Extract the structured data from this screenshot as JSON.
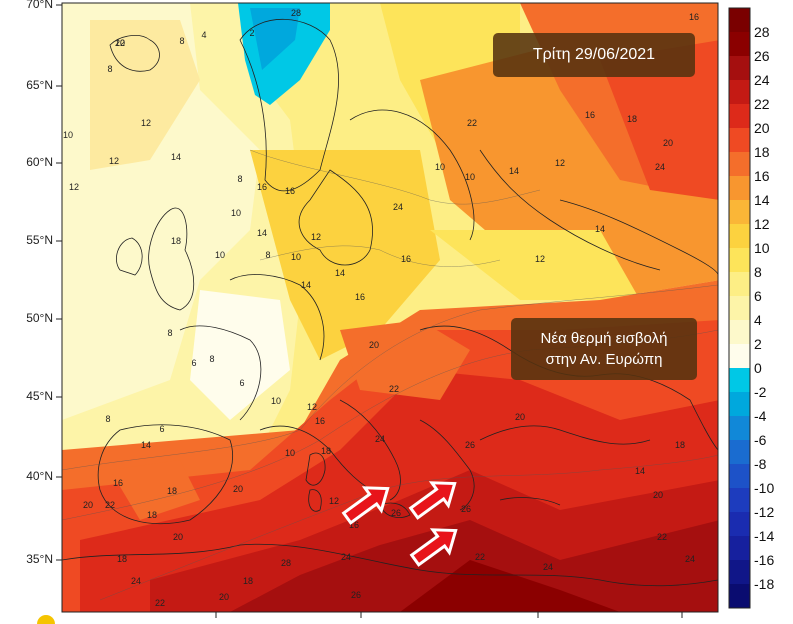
{
  "map": {
    "date_label": "Τρίτη 29/06/2021",
    "note_line1": "Νέα θερμή εισβολή",
    "note_line2": "στην Αν. Ευρώπη",
    "lat_labels": [
      "70°N",
      "65°N",
      "60°N",
      "55°N",
      "50°N",
      "45°N",
      "40°N",
      "35°N"
    ],
    "colorbar": {
      "labels": [
        "28",
        "26",
        "24",
        "22",
        "20",
        "18",
        "16",
        "14",
        "12",
        "10",
        "8",
        "6",
        "4",
        "2",
        "0",
        "-2",
        "-4",
        "-6",
        "-8",
        "-10",
        "-12",
        "-14",
        "-16",
        "-18"
      ],
      "colors": [
        "#8b0000",
        "#a50f0f",
        "#c41a14",
        "#dd2a1a",
        "#ef4a23",
        "#f46e2b",
        "#f8962f",
        "#fab637",
        "#fcd23f",
        "#fde45a",
        "#fdee85",
        "#fdf4a8",
        "#fdf9cb",
        "#fffdec",
        "#00c8e6",
        "#00a8dd",
        "#1188d8",
        "#1a6cd0",
        "#1d52c8",
        "#1d3cbe",
        "#1a2cb0",
        "#16209e",
        "#101688",
        "#0a0c70"
      ]
    },
    "contour_labels": [
      "10",
      "8",
      "4",
      "8",
      "2",
      "12",
      "10",
      "12",
      "12",
      "14",
      "16",
      "28",
      "8",
      "16",
      "10",
      "14",
      "18",
      "10",
      "8",
      "10",
      "12",
      "14",
      "16",
      "24",
      "22",
      "10",
      "10",
      "14",
      "12",
      "14",
      "16",
      "18",
      "24",
      "20",
      "8",
      "6",
      "14",
      "12",
      "16",
      "18",
      "20",
      "22",
      "8",
      "6",
      "10",
      "14",
      "16",
      "18",
      "20",
      "24",
      "26",
      "6",
      "8",
      "10",
      "12",
      "16",
      "18",
      "18",
      "20",
      "24",
      "26",
      "16",
      "12",
      "14",
      "20",
      "22",
      "24",
      "26",
      "20",
      "22",
      "24",
      "26",
      "28",
      "18",
      "20",
      "22",
      "24",
      "22",
      "20",
      "18",
      "16",
      "22"
    ],
    "arrows_count": 3
  }
}
